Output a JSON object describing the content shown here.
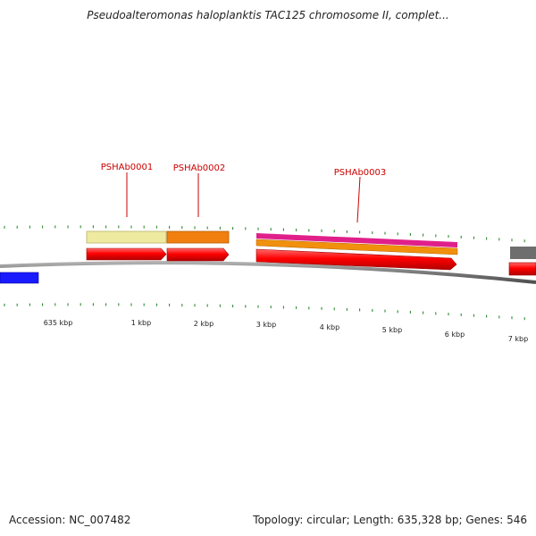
{
  "title": "Pseudoalteromonas haloplanktis TAC125 chromosome II, complet...",
  "footer": {
    "accession": "Accession: NC_007482",
    "summary": "Topology: circular; Length: 635,328 bp; Genes: 546"
  },
  "colors": {
    "backbone": "#7a7a7a",
    "tick": "#2e8b2e",
    "gene_label": "#cc0000",
    "cds_red": "#ff0000",
    "feature_pale_yellow": "#eeeaa0",
    "feature_orange": "#f07f10",
    "feature_magenta": "#e0208a",
    "feature_gray": "#6e6e6e",
    "feature_blue": "#1a1aff"
  },
  "scale_labels": [
    "635 kbp",
    "1 kbp",
    "2 kbp",
    "3 kbp",
    "4 kbp",
    "5 kbp",
    "6 kbp",
    "7 kbp"
  ],
  "gene_labels": [
    "PSHAb0001",
    "PSHAb0002",
    "PSHAb0003"
  ]
}
